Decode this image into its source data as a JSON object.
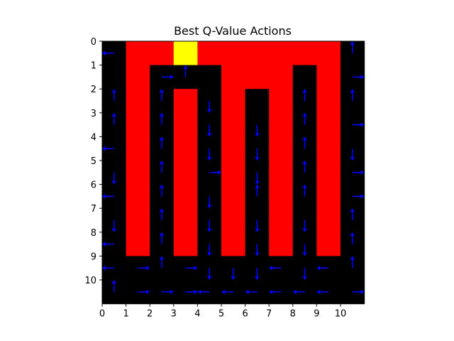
{
  "chart_data": {
    "type": "heatmap",
    "title": "Best Q-Value Actions",
    "xlabel": "",
    "ylabel": "",
    "x_ticks": [
      "0",
      "1",
      "2",
      "3",
      "4",
      "5",
      "6",
      "7",
      "8",
      "9",
      "10"
    ],
    "y_ticks": [
      "0",
      "1",
      "2",
      "3",
      "4",
      "5",
      "6",
      "7",
      "8",
      "9",
      "10"
    ],
    "xlim": [
      0,
      11
    ],
    "ylim": [
      11,
      0
    ],
    "grid": false,
    "colors": {
      "wall": "#000000",
      "track": "#ff0000",
      "goal": "#ffff00",
      "arrow": "#0000ff"
    },
    "cell_legend": {
      "0": "wall",
      "1": "track",
      "2": "goal"
    },
    "grid_values": [
      [
        0,
        1,
        1,
        2,
        1,
        1,
        1,
        1,
        1,
        1,
        0
      ],
      [
        0,
        1,
        0,
        0,
        0,
        1,
        1,
        1,
        0,
        1,
        0
      ],
      [
        0,
        1,
        0,
        1,
        0,
        1,
        0,
        1,
        0,
        1,
        0
      ],
      [
        0,
        1,
        0,
        1,
        0,
        1,
        0,
        1,
        0,
        1,
        0
      ],
      [
        0,
        1,
        0,
        1,
        0,
        1,
        0,
        1,
        0,
        1,
        0
      ],
      [
        0,
        1,
        0,
        1,
        0,
        1,
        0,
        1,
        0,
        1,
        0
      ],
      [
        0,
        1,
        0,
        1,
        0,
        1,
        0,
        1,
        0,
        1,
        0
      ],
      [
        0,
        1,
        0,
        1,
        0,
        1,
        0,
        1,
        0,
        1,
        0
      ],
      [
        0,
        1,
        0,
        1,
        0,
        1,
        0,
        1,
        0,
        1,
        0
      ],
      [
        0,
        0,
        0,
        0,
        0,
        0,
        0,
        0,
        0,
        0,
        0
      ],
      [
        0,
        0,
        0,
        0,
        0,
        0,
        0,
        0,
        0,
        0,
        0
      ]
    ],
    "actions": [
      {
        "col": 0,
        "row": 0,
        "dir": "left"
      },
      {
        "col": 10,
        "row": 0,
        "dir": "up"
      },
      {
        "col": 3,
        "row": 1,
        "dir": "up"
      },
      {
        "col": 0,
        "row": 2,
        "dir": "up"
      },
      {
        "col": 2,
        "row": 1,
        "dir": "right"
      },
      {
        "col": 10,
        "row": 1,
        "dir": "right"
      },
      {
        "col": 4,
        "row": 2,
        "dir": "down"
      },
      {
        "col": 8,
        "row": 2,
        "dir": "up"
      },
      {
        "col": 2,
        "row": 2,
        "dir": "up"
      },
      {
        "col": 10,
        "row": 2,
        "dir": "up"
      },
      {
        "col": 0,
        "row": 3,
        "dir": "up"
      },
      {
        "col": 4,
        "row": 3,
        "dir": "down"
      },
      {
        "col": 6,
        "row": 3,
        "dir": "down"
      },
      {
        "col": 8,
        "row": 3,
        "dir": "up"
      },
      {
        "col": 2,
        "row": 3,
        "dir": "up"
      },
      {
        "col": 10,
        "row": 3,
        "dir": "right"
      },
      {
        "col": 0,
        "row": 4,
        "dir": "left"
      },
      {
        "col": 4,
        "row": 4,
        "dir": "down"
      },
      {
        "col": 6,
        "row": 4,
        "dir": "down"
      },
      {
        "col": 8,
        "row": 4,
        "dir": "up"
      },
      {
        "col": 2,
        "row": 4,
        "dir": "up"
      },
      {
        "col": 10,
        "row": 4,
        "dir": "down"
      },
      {
        "col": 4,
        "row": 5,
        "dir": "right"
      },
      {
        "col": 6,
        "row": 5,
        "dir": "down"
      },
      {
        "col": 8,
        "row": 5,
        "dir": "up"
      },
      {
        "col": 10,
        "row": 5,
        "dir": "right"
      },
      {
        "col": 0,
        "row": 5,
        "dir": "down"
      },
      {
        "col": 2,
        "row": 5,
        "dir": "up"
      },
      {
        "col": 0,
        "row": 6,
        "dir": "left"
      },
      {
        "col": 4,
        "row": 6,
        "dir": "down"
      },
      {
        "col": 6,
        "row": 6,
        "dir": "up"
      },
      {
        "col": 8,
        "row": 6,
        "dir": "up"
      },
      {
        "col": 10,
        "row": 6,
        "dir": "right"
      },
      {
        "col": 2,
        "row": 6,
        "dir": "up"
      },
      {
        "col": 6,
        "row": 7,
        "dir": "down"
      },
      {
        "col": 10,
        "row": 7,
        "dir": "up"
      },
      {
        "col": 0,
        "row": 7,
        "dir": "down"
      },
      {
        "col": 2,
        "row": 7,
        "dir": "up"
      },
      {
        "col": 4,
        "row": 7,
        "dir": "down"
      },
      {
        "col": 8,
        "row": 7,
        "dir": "down"
      },
      {
        "col": 0,
        "row": 8,
        "dir": "left"
      },
      {
        "col": 2,
        "row": 8,
        "dir": "up"
      },
      {
        "col": 4,
        "row": 8,
        "dir": "down"
      },
      {
        "col": 6,
        "row": 8,
        "dir": "down"
      },
      {
        "col": 8,
        "row": 8,
        "dir": "down"
      },
      {
        "col": 10,
        "row": 8,
        "dir": "up"
      },
      {
        "col": 0,
        "row": 9,
        "dir": "left"
      },
      {
        "col": 1,
        "row": 9,
        "dir": "right"
      },
      {
        "col": 2,
        "row": 9,
        "dir": "up"
      },
      {
        "col": 3,
        "row": 9,
        "dir": "right"
      },
      {
        "col": 4,
        "row": 9,
        "dir": "down"
      },
      {
        "col": 5,
        "row": 9,
        "dir": "down"
      },
      {
        "col": 6,
        "row": 9,
        "dir": "down"
      },
      {
        "col": 7,
        "row": 9,
        "dir": "left"
      },
      {
        "col": 8,
        "row": 9,
        "dir": "down"
      },
      {
        "col": 9,
        "row": 9,
        "dir": "left"
      },
      {
        "col": 10,
        "row": 9,
        "dir": "up"
      },
      {
        "col": 0,
        "row": 10,
        "dir": "up"
      },
      {
        "col": 1,
        "row": 10,
        "dir": "right"
      },
      {
        "col": 2,
        "row": 10,
        "dir": "right"
      },
      {
        "col": 3,
        "row": 10,
        "dir": "right"
      },
      {
        "col": 4,
        "row": 10,
        "dir": "left"
      },
      {
        "col": 5,
        "row": 10,
        "dir": "left"
      },
      {
        "col": 6,
        "row": 10,
        "dir": "left"
      },
      {
        "col": 7,
        "row": 10,
        "dir": "left"
      },
      {
        "col": 8,
        "row": 10,
        "dir": "left"
      },
      {
        "col": 9,
        "row": 10,
        "dir": "left"
      },
      {
        "col": 10,
        "row": 10,
        "dir": "right"
      }
    ]
  }
}
